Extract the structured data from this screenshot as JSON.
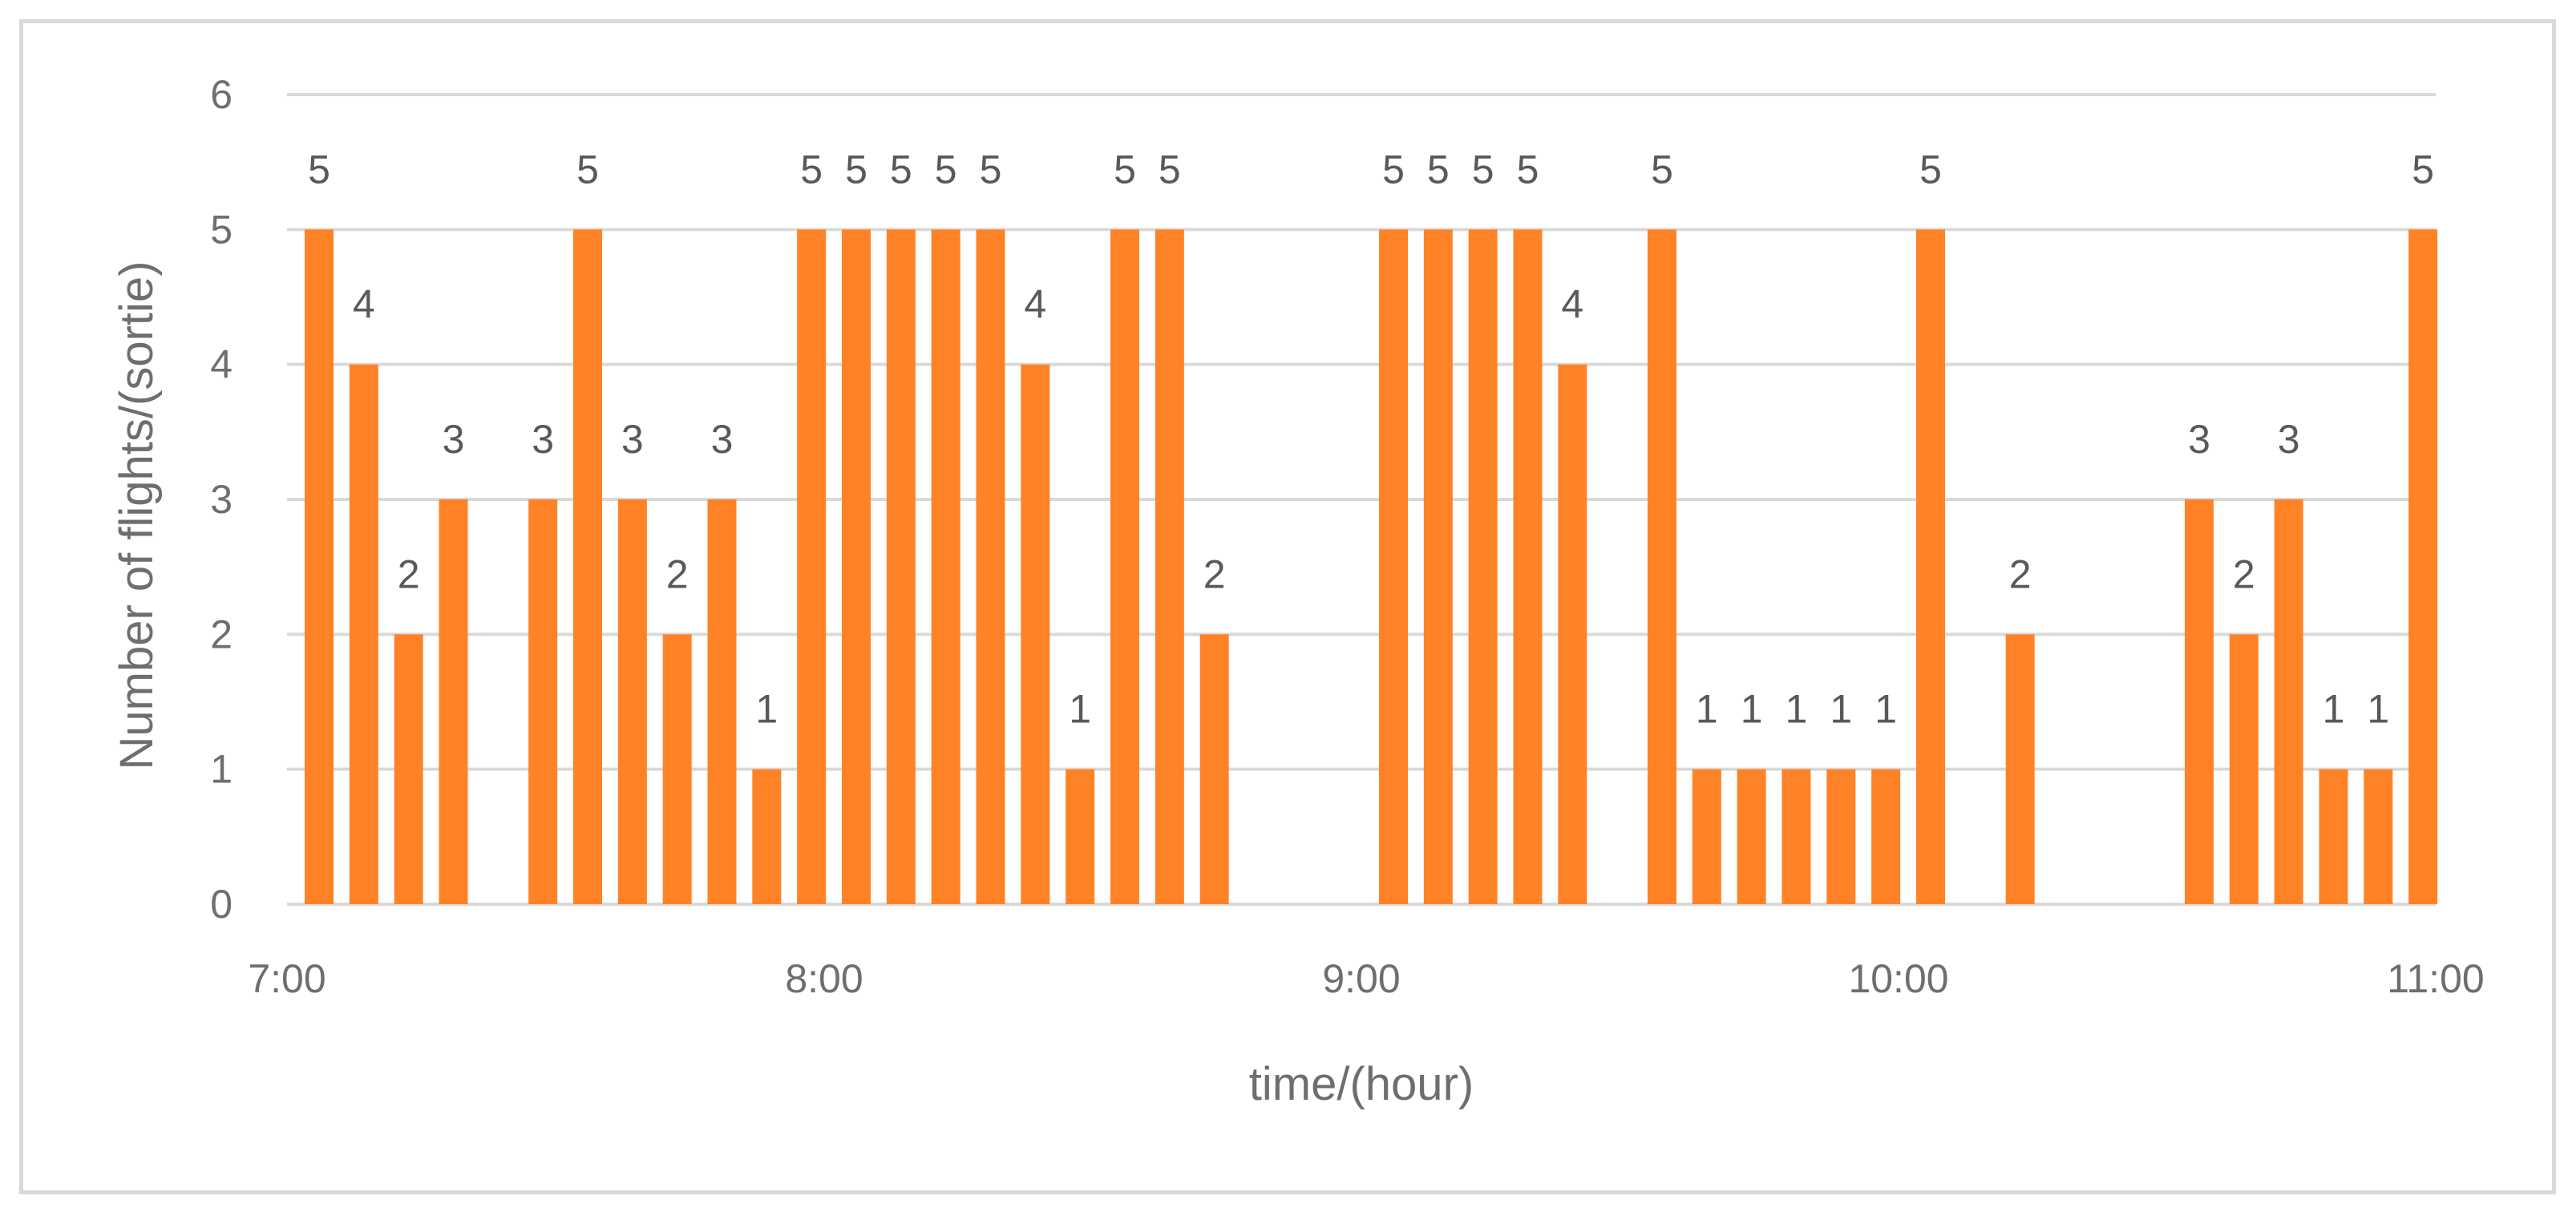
{
  "chart_data": {
    "type": "bar",
    "title": "",
    "xlabel": "time/(hour)",
    "ylabel": "Number of flights/(sortie)",
    "ylim": [
      0,
      6
    ],
    "yticks": [
      "0",
      "1",
      "2",
      "3",
      "4",
      "5",
      "6"
    ],
    "xlim_hours": [
      7,
      11
    ],
    "xticks": [
      {
        "hour": 7,
        "label": "7:00"
      },
      {
        "hour": 8,
        "label": "8:00"
      },
      {
        "hour": 9,
        "label": "9:00"
      },
      {
        "hour": 10,
        "label": "10:00"
      },
      {
        "hour": 11,
        "label": "11:00"
      }
    ],
    "grid": true,
    "color": "#ff8226",
    "bars": [
      {
        "minute": 0,
        "value": 5
      },
      {
        "minute": 5,
        "value": 4
      },
      {
        "minute": 10,
        "value": 2
      },
      {
        "minute": 15,
        "value": 3
      },
      {
        "minute": 25,
        "value": 3
      },
      {
        "minute": 30,
        "value": 5
      },
      {
        "minute": 35,
        "value": 3
      },
      {
        "minute": 40,
        "value": 2
      },
      {
        "minute": 45,
        "value": 3
      },
      {
        "minute": 50,
        "value": 1
      },
      {
        "minute": 55,
        "value": 5
      },
      {
        "minute": 60,
        "value": 5
      },
      {
        "minute": 65,
        "value": 5
      },
      {
        "minute": 70,
        "value": 5
      },
      {
        "minute": 75,
        "value": 5
      },
      {
        "minute": 80,
        "value": 4
      },
      {
        "minute": 85,
        "value": 1
      },
      {
        "minute": 90,
        "value": 5
      },
      {
        "minute": 95,
        "value": 5
      },
      {
        "minute": 100,
        "value": 2
      },
      {
        "minute": 120,
        "value": 5
      },
      {
        "minute": 125,
        "value": 5
      },
      {
        "minute": 130,
        "value": 5
      },
      {
        "minute": 135,
        "value": 5
      },
      {
        "minute": 140,
        "value": 4
      },
      {
        "minute": 150,
        "value": 5
      },
      {
        "minute": 155,
        "value": 1
      },
      {
        "minute": 160,
        "value": 1
      },
      {
        "minute": 165,
        "value": 1
      },
      {
        "minute": 170,
        "value": 1
      },
      {
        "minute": 175,
        "value": 1
      },
      {
        "minute": 180,
        "value": 5
      },
      {
        "minute": 190,
        "value": 2
      },
      {
        "minute": 210,
        "value": 3
      },
      {
        "minute": 215,
        "value": 2
      },
      {
        "minute": 220,
        "value": 3
      },
      {
        "minute": 225,
        "value": 1
      },
      {
        "minute": 230,
        "value": 1
      },
      {
        "minute": 235,
        "value": 5
      }
    ]
  }
}
